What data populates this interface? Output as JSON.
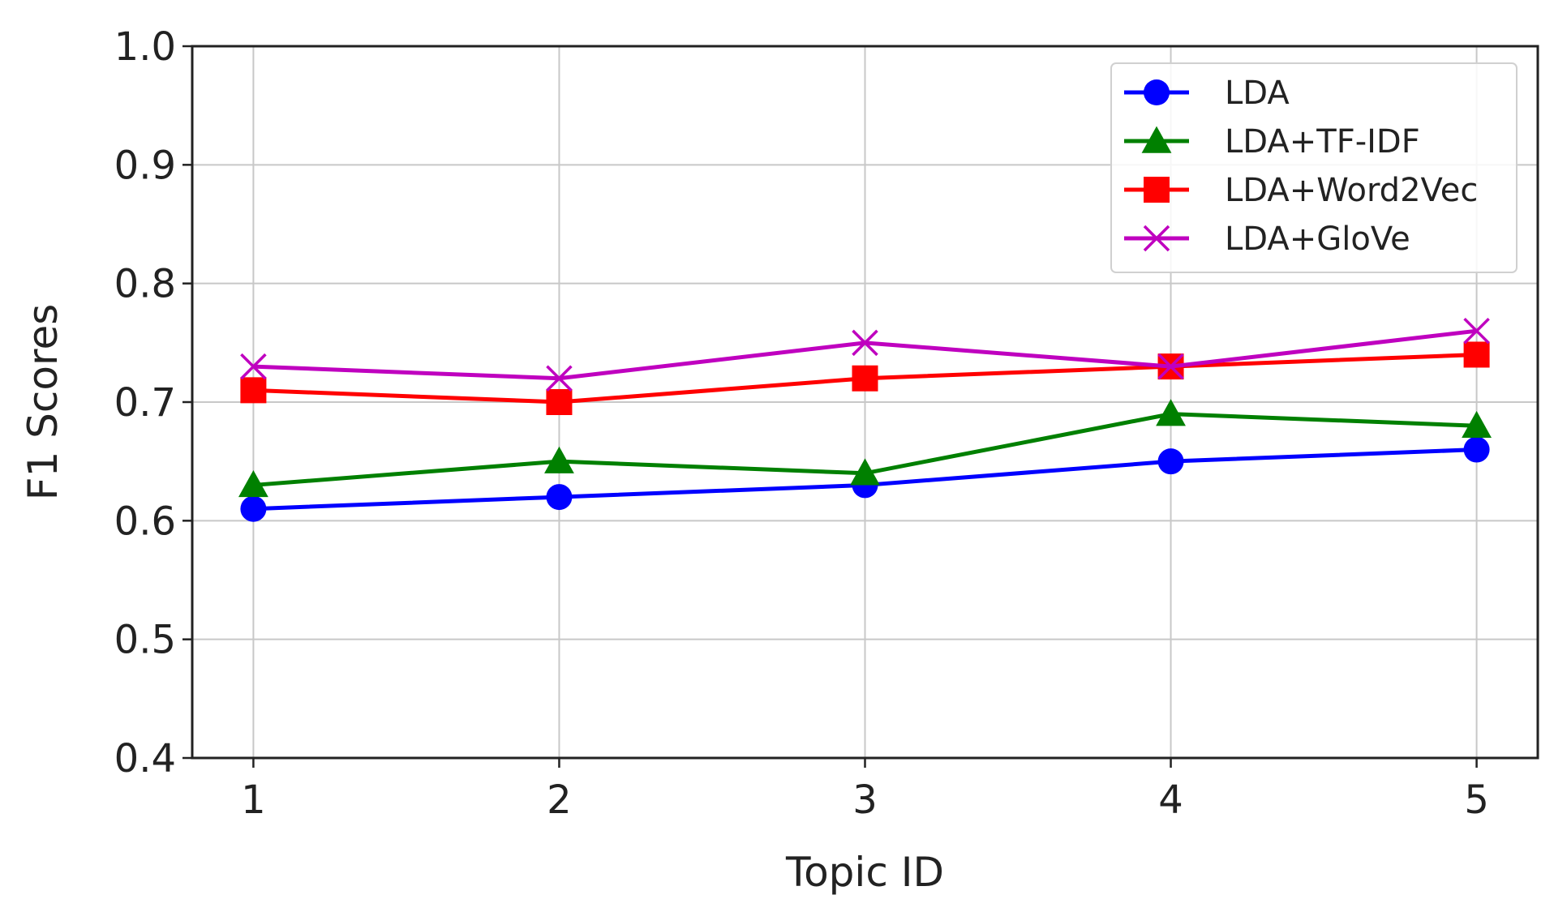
{
  "chart_data": {
    "type": "line",
    "x": [
      1,
      2,
      3,
      4,
      5
    ],
    "xlabel": "Topic ID",
    "ylabel": "F1 Scores",
    "xlim": [
      0.8,
      5.2
    ],
    "ylim": [
      0.4,
      1.0
    ],
    "x_ticks": [
      "1",
      "2",
      "3",
      "4",
      "5"
    ],
    "y_ticks": [
      "0.4",
      "0.5",
      "0.6",
      "0.7",
      "0.8",
      "0.9",
      "1.0"
    ],
    "grid": true,
    "legend_position": "top-right",
    "series": [
      {
        "name": "LDA",
        "marker": "circle",
        "color": "#0000ff",
        "values": [
          0.61,
          0.62,
          0.63,
          0.65,
          0.66
        ]
      },
      {
        "name": "LDA+TF-IDF",
        "marker": "triangle",
        "color": "#008000",
        "values": [
          0.63,
          0.65,
          0.64,
          0.69,
          0.68
        ]
      },
      {
        "name": "LDA+Word2Vec",
        "marker": "square",
        "color": "#ff0000",
        "values": [
          0.71,
          0.7,
          0.72,
          0.73,
          0.74
        ]
      },
      {
        "name": "LDA+GloVe",
        "marker": "x",
        "color": "#bf00bf",
        "values": [
          0.73,
          0.72,
          0.75,
          0.73,
          0.76
        ]
      }
    ]
  }
}
